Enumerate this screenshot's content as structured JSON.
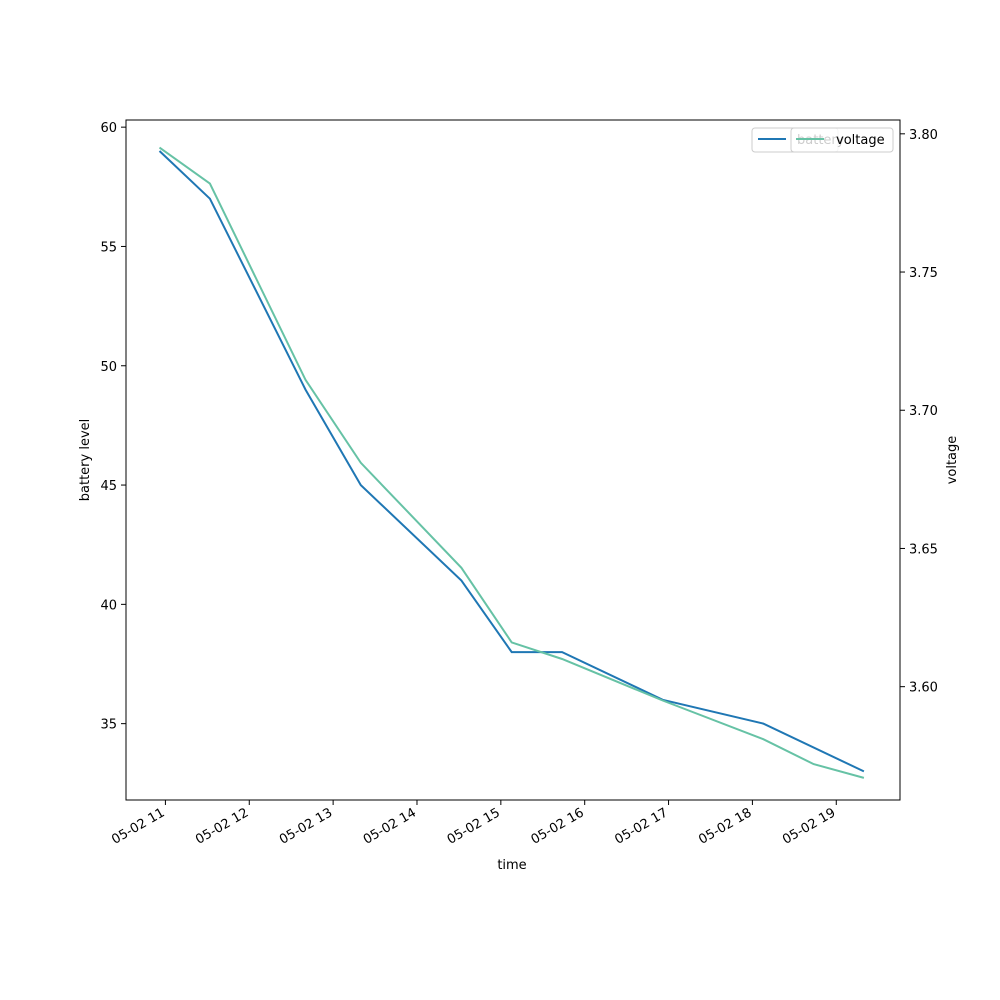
{
  "chart_data": {
    "type": "line",
    "xlabel": "time",
    "ylabel": "battery level",
    "ylabel_right": "voltage",
    "x_tick_labels": [
      "05-02 11",
      "05-02 12",
      "05-02 13",
      "05-02 14",
      "05-02 15",
      "05-02 16",
      "05-02 17",
      "05-02 18",
      "05-02 19"
    ],
    "x_ticks": [
      11,
      12,
      13,
      14,
      15,
      16,
      17,
      18,
      19
    ],
    "xlim": [
      10.53,
      19.76
    ],
    "ylim_left": [
      31.8,
      60.3
    ],
    "ylim_right": [
      3.559,
      3.805
    ],
    "y_ticks_left": [
      35,
      40,
      45,
      50,
      55,
      60
    ],
    "y_ticks_right": [
      3.6,
      3.65,
      3.7,
      3.75,
      3.8
    ],
    "y_tick_labels_left": [
      "35",
      "40",
      "45",
      "50",
      "55",
      "60"
    ],
    "y_tick_labels_right": [
      "3.60",
      "3.65",
      "3.70",
      "3.75",
      "3.80"
    ],
    "grid": false,
    "legend_position": "top-right",
    "series": [
      {
        "name": "battery",
        "axis": "left",
        "color": "#1f77b4",
        "x": [
          10.93,
          11.53,
          12.67,
          13.33,
          14.53,
          15.13,
          15.73,
          16.93,
          18.13,
          19.33
        ],
        "y": [
          59,
          57,
          49,
          45,
          41,
          38,
          38,
          36,
          35,
          33
        ]
      },
      {
        "name": "voltage",
        "axis": "right",
        "color": "#66c2a5",
        "x": [
          10.93,
          11.53,
          12.67,
          13.33,
          14.53,
          15.13,
          15.73,
          16.93,
          18.13,
          18.73,
          19.33
        ],
        "y": [
          3.795,
          3.782,
          3.711,
          3.681,
          3.643,
          3.616,
          3.61,
          3.595,
          3.581,
          3.572,
          3.567
        ]
      }
    ]
  }
}
